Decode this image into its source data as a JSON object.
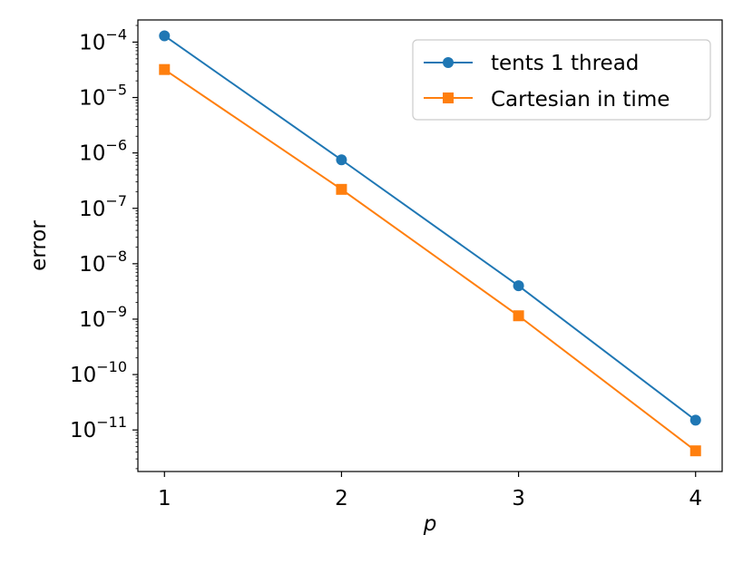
{
  "chart_data": {
    "type": "line",
    "title": "",
    "xlabel": "p",
    "ylabel": "error",
    "yscale": "log",
    "x": [
      1,
      2,
      3,
      4
    ],
    "xlim": [
      0.85,
      4.15
    ],
    "ylim_exp": [
      -11.75,
      -3.6
    ],
    "x_ticks": [
      {
        "value": 1,
        "label": "1"
      },
      {
        "value": 2,
        "label": "2"
      },
      {
        "value": 3,
        "label": "3"
      },
      {
        "value": 4,
        "label": "4"
      }
    ],
    "y_ticks": [
      {
        "exp": -4,
        "base": "10",
        "power": "−4"
      },
      {
        "exp": -5,
        "base": "10",
        "power": "−5"
      },
      {
        "exp": -6,
        "base": "10",
        "power": "−6"
      },
      {
        "exp": -7,
        "base": "10",
        "power": "−7"
      },
      {
        "exp": -8,
        "base": "10",
        "power": "−8"
      },
      {
        "exp": -9,
        "base": "10",
        "power": "−9"
      },
      {
        "exp": -10,
        "base": "10",
        "power": "−10"
      },
      {
        "exp": -11,
        "base": "10",
        "power": "−11"
      }
    ],
    "grid": false,
    "legend_position": "top-right",
    "series": [
      {
        "name": "tents 1 thread",
        "color": "#1f77b4",
        "marker": "circle",
        "values": [
          0.00013,
          7.5e-07,
          4e-09,
          1.5e-11
        ]
      },
      {
        "name": "Cartesian in time",
        "color": "#ff7f0e",
        "marker": "square",
        "values": [
          3.2e-05,
          2.2e-07,
          1.15e-09,
          4.2e-12
        ]
      }
    ]
  }
}
